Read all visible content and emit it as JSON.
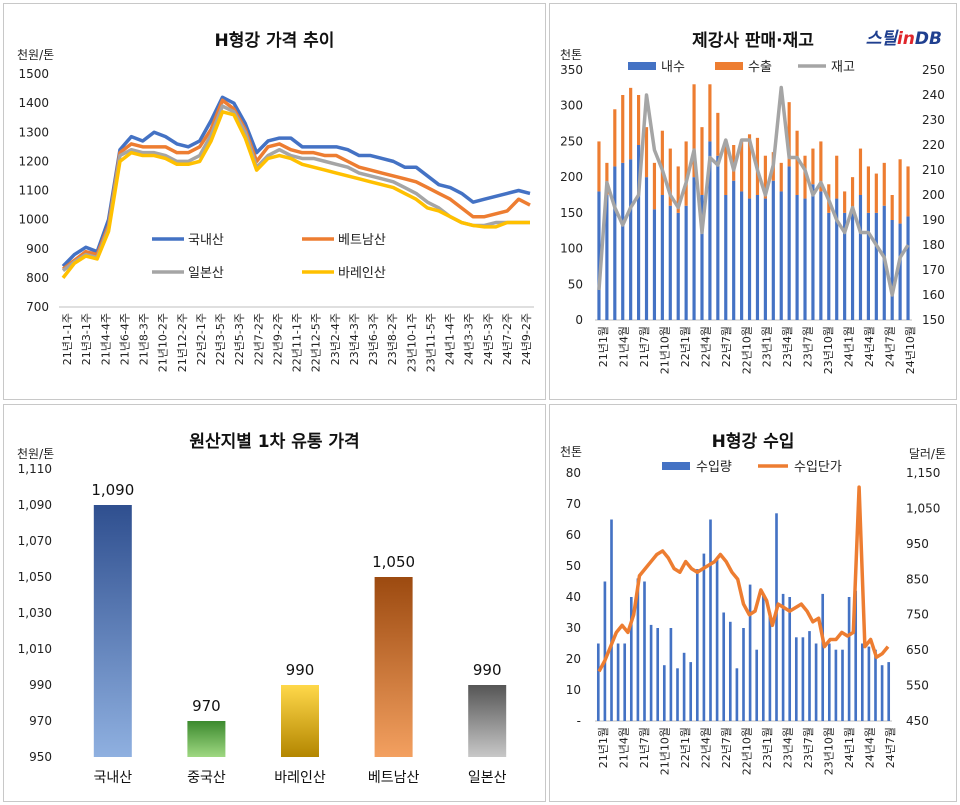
{
  "branding": {
    "logo_text_a": "스틸",
    "logo_text_b": "in",
    "logo_text_c": "DB"
  },
  "chart_data": [
    {
      "type": "line",
      "title": "H형강 가격 추이",
      "ylabel": "천원/톤",
      "ylim": [
        700,
        1500
      ],
      "yticks": [
        700,
        800,
        900,
        1000,
        1100,
        1200,
        1300,
        1400,
        1500
      ],
      "x_tick_labels": [
        "21년1-1주",
        "21년3-1주",
        "21년4-4주",
        "21년6-4주",
        "21년8-3주",
        "21년10-2주",
        "21년12-2주",
        "22년2-1주",
        "22년3-5주",
        "22년5-3주",
        "22년7-2주",
        "22년9-2주",
        "22년11-1주",
        "22년12-5주",
        "23년2-4주",
        "23년4-3주",
        "23년6-3주",
        "23년8-2주",
        "23년10-1주",
        "23년11-5주",
        "24년1-4주",
        "24년3-3주",
        "24년5-3주",
        "24년7-2주",
        "24년9-2주"
      ],
      "legend_position": "center",
      "series": [
        {
          "name": "국내산",
          "color": "#4472c4",
          "values": [
            840,
            880,
            905,
            890,
            1000,
            1240,
            1285,
            1270,
            1300,
            1285,
            1260,
            1250,
            1270,
            1340,
            1420,
            1400,
            1330,
            1230,
            1270,
            1280,
            1280,
            1250,
            1250,
            1250,
            1250,
            1240,
            1220,
            1220,
            1210,
            1200,
            1180,
            1180,
            1150,
            1120,
            1110,
            1090,
            1060,
            1070,
            1080,
            1090,
            1100,
            1090
          ]
        },
        {
          "name": "베트남산",
          "color": "#ed7d31",
          "values": [
            830,
            860,
            890,
            880,
            980,
            1230,
            1260,
            1250,
            1250,
            1250,
            1230,
            1230,
            1250,
            1310,
            1410,
            1380,
            1310,
            1200,
            1250,
            1260,
            1240,
            1230,
            1230,
            1220,
            1220,
            1200,
            1180,
            1170,
            1160,
            1150,
            1140,
            1130,
            1110,
            1090,
            1070,
            1040,
            1010,
            1010,
            1020,
            1030,
            1070,
            1050
          ]
        },
        {
          "name": "일본산",
          "color": "#a5a5a5",
          "values": [
            825,
            855,
            880,
            870,
            970,
            1220,
            1240,
            1230,
            1230,
            1220,
            1200,
            1200,
            1220,
            1290,
            1390,
            1370,
            1300,
            1180,
            1220,
            1240,
            1220,
            1210,
            1210,
            1200,
            1190,
            1180,
            1160,
            1150,
            1140,
            1130,
            1110,
            1090,
            1060,
            1040,
            1010,
            990,
            980,
            980,
            990,
            990,
            990,
            990
          ]
        },
        {
          "name": "바레인산",
          "color": "#ffc000",
          "values": [
            800,
            850,
            875,
            865,
            960,
            1200,
            1230,
            1220,
            1220,
            1210,
            1190,
            1190,
            1200,
            1270,
            1370,
            1360,
            1280,
            1170,
            1210,
            1220,
            1210,
            1190,
            1180,
            1170,
            1160,
            1150,
            1140,
            1130,
            1120,
            1110,
            1090,
            1070,
            1040,
            1030,
            1010,
            990,
            980,
            975,
            975,
            990,
            990,
            990
          ]
        }
      ]
    },
    {
      "type": "bar+line",
      "title": "제강사 판매·재고",
      "ylabel": "천톤",
      "ylim": [
        0,
        350
      ],
      "yticks": [
        0,
        50,
        100,
        150,
        200,
        250,
        300,
        350
      ],
      "y2lim": [
        150,
        250
      ],
      "y2ticks": [
        150,
        160,
        170,
        180,
        190,
        200,
        210,
        220,
        230,
        240,
        250
      ],
      "x_tick_labels": [
        "21년1월",
        "21년4월",
        "21년7월",
        "21년10월",
        "22년1월",
        "22년4월",
        "22년7월",
        "22년10월",
        "23년1월",
        "23년4월",
        "23년7월",
        "23년10월",
        "24년1월",
        "24년4월",
        "24년7월",
        "24년10월"
      ],
      "legend_position": "top",
      "series": [
        {
          "name": "내수",
          "color": "#4472c4",
          "values": [
            180,
            175,
            215,
            220,
            225,
            245,
            200,
            155,
            175,
            160,
            150,
            160,
            200,
            175,
            250,
            230,
            175,
            195,
            180,
            170,
            175,
            170,
            195,
            180,
            215,
            175,
            170,
            190,
            180,
            150,
            170,
            150,
            150,
            175,
            150,
            150,
            160,
            140,
            135,
            145
          ]
        },
        {
          "name": "수출",
          "color": "#ed7d31",
          "values": [
            70,
            45,
            80,
            95,
            100,
            70,
            70,
            65,
            90,
            80,
            65,
            90,
            130,
            95,
            80,
            60,
            70,
            50,
            70,
            90,
            80,
            60,
            40,
            40,
            90,
            90,
            60,
            50,
            70,
            40,
            60,
            30,
            50,
            65,
            65,
            55,
            60,
            35,
            90,
            70
          ]
        },
        {
          "name": "재고",
          "color": "#a5a5a5",
          "values": [
            162,
            205,
            195,
            188,
            195,
            200,
            240,
            218,
            210,
            200,
            195,
            205,
            218,
            185,
            215,
            212,
            222,
            210,
            222,
            222,
            210,
            200,
            212,
            243,
            215,
            215,
            210,
            200,
            205,
            198,
            190,
            185,
            195,
            185,
            185,
            180,
            175,
            160,
            175,
            180
          ]
        }
      ]
    },
    {
      "type": "bar",
      "title": "원산지별 1차 유통 가격",
      "ylabel": "천원/톤",
      "ylim": [
        950,
        1110
      ],
      "yticks": [
        950,
        970,
        990,
        1010,
        1030,
        1050,
        1070,
        1090,
        1110
      ],
      "categories": [
        "국내산",
        "중국산",
        "바레인산",
        "베트남산",
        "일본산"
      ],
      "values": [
        1090,
        970,
        990,
        1050,
        990
      ],
      "value_labels": [
        "1,090",
        "970",
        "990",
        "1,050",
        "990"
      ],
      "ytick_labels": [
        "950",
        "970",
        "990",
        "1,010",
        "1,030",
        "1,050",
        "1,070",
        "1,090",
        "1,110"
      ],
      "colors": [
        [
          "#2f4f8f",
          "#8fb0e0"
        ],
        [
          "#3c8a2e",
          "#9fd882"
        ],
        [
          "#ffd84a",
          "#b38600"
        ],
        [
          "#9c4a10",
          "#f3a060"
        ],
        [
          "#555555",
          "#c8c8c8"
        ]
      ]
    },
    {
      "type": "bar+line",
      "title": "H형강 수입",
      "ylabel": "천톤",
      "y2label": "달러/톤",
      "ylim": [
        0,
        80
      ],
      "yticks": [
        0,
        10,
        20,
        30,
        40,
        50,
        60,
        70,
        80
      ],
      "ytick_labels": [
        "-",
        "10",
        "20",
        "30",
        "40",
        "50",
        "60",
        "70",
        "80"
      ],
      "y2lim": [
        450,
        1150
      ],
      "y2ticks": [
        450,
        550,
        650,
        750,
        850,
        950,
        1050,
        1150
      ],
      "y2tick_labels": [
        "450",
        "550",
        "650",
        "750",
        "850",
        "950",
        "1,050",
        "1,150"
      ],
      "x_tick_labels": [
        "21년1월",
        "21년4월",
        "21년7월",
        "21년10월",
        "22년1월",
        "22년4월",
        "22년7월",
        "22년10월",
        "23년1월",
        "23년4월",
        "23년7월",
        "23년10월",
        "24년1월",
        "24년4월",
        "24년7월"
      ],
      "legend_position": "top",
      "series": [
        {
          "name": "수입량",
          "color": "#4472c4",
          "values": [
            25,
            45,
            65,
            25,
            25,
            40,
            46,
            45,
            31,
            30,
            18,
            30,
            17,
            22,
            19,
            49,
            54,
            65,
            52,
            35,
            32,
            17,
            30,
            44,
            23,
            41,
            35,
            67,
            41,
            40,
            27,
            27,
            29,
            25,
            41,
            25,
            23,
            23,
            40,
            42,
            25,
            24,
            23,
            18,
            19
          ]
        },
        {
          "name": "수입단가",
          "color": "#ed7d31",
          "values": [
            590,
            620,
            660,
            700,
            720,
            700,
            750,
            860,
            880,
            900,
            920,
            930,
            910,
            880,
            870,
            900,
            880,
            870,
            880,
            890,
            900,
            920,
            900,
            870,
            850,
            780,
            750,
            760,
            820,
            790,
            720,
            780,
            770,
            760,
            770,
            780,
            760,
            730,
            740,
            660,
            680,
            680,
            700,
            690,
            700,
            1110,
            660,
            680,
            630,
            640,
            660
          ]
        }
      ]
    }
  ]
}
